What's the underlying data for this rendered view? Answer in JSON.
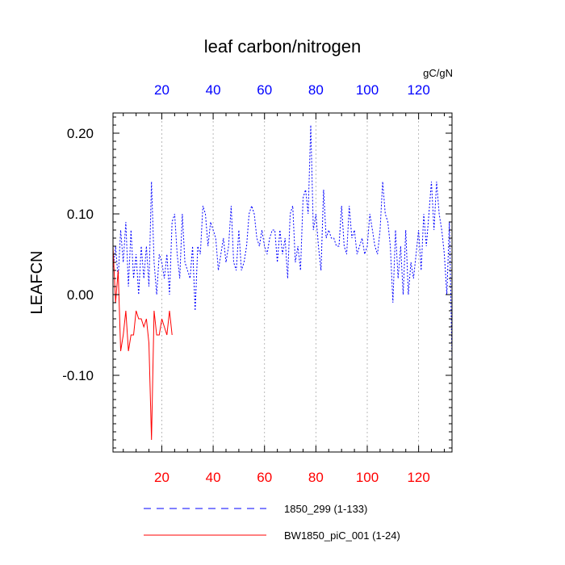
{
  "chart_data": {
    "type": "line",
    "title": "leaf carbon/nitrogen",
    "ylabel": "LEAFCN",
    "units": "gC/gN",
    "xlim": [
      1,
      133
    ],
    "ylim": [
      -0.195,
      0.225
    ],
    "xticks": [
      20,
      40,
      60,
      80,
      100,
      120
    ],
    "yticks": [
      0.2,
      0.1,
      0.0,
      -0.1
    ],
    "ytick_labels": [
      "0.20",
      "0.10",
      "0.00",
      "-0.10"
    ],
    "grid": "vertical dotted at top-axis ticks",
    "colors": {
      "bottom_axis": "#ff0000",
      "top_axis": "#0000ff"
    },
    "series": [
      {
        "name": "1850_299 (1-133)",
        "color": "#0000ff",
        "style": "dashed",
        "x": [
          1,
          2,
          3,
          4,
          5,
          6,
          7,
          8,
          9,
          10,
          11,
          12,
          13,
          14,
          15,
          16,
          17,
          18,
          19,
          20,
          21,
          22,
          23,
          24,
          25,
          26,
          27,
          28,
          29,
          30,
          31,
          32,
          33,
          34,
          35,
          36,
          37,
          38,
          39,
          40,
          41,
          42,
          43,
          44,
          45,
          46,
          47,
          48,
          49,
          50,
          51,
          52,
          53,
          54,
          55,
          56,
          57,
          58,
          59,
          60,
          61,
          62,
          63,
          64,
          65,
          66,
          67,
          68,
          69,
          70,
          71,
          72,
          73,
          74,
          75,
          76,
          77,
          78,
          79,
          80,
          81,
          82,
          83,
          84,
          85,
          86,
          87,
          88,
          89,
          90,
          91,
          92,
          93,
          94,
          95,
          96,
          97,
          98,
          99,
          100,
          101,
          102,
          103,
          104,
          105,
          106,
          107,
          108,
          109,
          110,
          111,
          112,
          113,
          114,
          115,
          116,
          117,
          118,
          119,
          120,
          121,
          122,
          123,
          124,
          125,
          126,
          127,
          128,
          129,
          130,
          131,
          132,
          133
        ],
        "values": [
          0.03,
          0.06,
          0.02,
          0.08,
          0.04,
          0.09,
          0.01,
          0.08,
          0.02,
          0.05,
          0.0,
          0.06,
          0.02,
          0.06,
          0.01,
          0.14,
          0.04,
          0.0,
          0.05,
          0.04,
          0.02,
          0.05,
          0.0,
          0.09,
          0.1,
          0.05,
          0.02,
          0.1,
          0.04,
          0.03,
          0.02,
          0.06,
          -0.02,
          0.06,
          0.05,
          0.11,
          0.1,
          0.06,
          0.09,
          0.08,
          0.07,
          0.03,
          0.05,
          0.07,
          0.04,
          0.06,
          0.11,
          0.04,
          0.03,
          0.08,
          0.03,
          0.04,
          0.06,
          0.1,
          0.11,
          0.1,
          0.07,
          0.06,
          0.08,
          0.06,
          0.05,
          0.07,
          0.08,
          0.08,
          0.04,
          0.08,
          0.05,
          0.07,
          0.02,
          0.1,
          0.11,
          0.04,
          0.06,
          0.03,
          0.12,
          0.13,
          0.1,
          0.21,
          0.08,
          0.1,
          0.06,
          0.03,
          0.13,
          0.07,
          0.08,
          0.07,
          0.07,
          0.06,
          0.06,
          0.11,
          0.06,
          0.05,
          0.11,
          0.07,
          0.08,
          0.05,
          0.06,
          0.07,
          0.05,
          0.06,
          0.1,
          0.08,
          0.06,
          0.05,
          0.08,
          0.14,
          0.1,
          0.09,
          0.06,
          -0.01,
          0.08,
          0.02,
          0.06,
          0.0,
          0.08,
          0.0,
          0.04,
          0.02,
          0.05,
          0.08,
          0.03,
          0.1,
          0.06,
          0.1,
          0.14,
          0.08,
          0.14,
          0.1,
          0.08,
          0.05,
          0.0,
          0.09,
          -0.08
        ]
      },
      {
        "name": "BW1850_piC_001 (1-24)",
        "color": "#ff0000",
        "style": "solid",
        "x": [
          1,
          2,
          3,
          4,
          5,
          6,
          7,
          8,
          9,
          10,
          11,
          12,
          13,
          14,
          15,
          16,
          17,
          18,
          19,
          20,
          21,
          22,
          23,
          24
        ],
        "values": [
          0.06,
          -0.01,
          0.03,
          -0.07,
          -0.05,
          -0.02,
          -0.07,
          -0.05,
          -0.05,
          -0.02,
          -0.03,
          -0.03,
          -0.04,
          -0.03,
          -0.06,
          -0.18,
          -0.02,
          -0.05,
          -0.05,
          -0.03,
          -0.04,
          -0.05,
          -0.02,
          -0.05
        ]
      }
    ]
  }
}
